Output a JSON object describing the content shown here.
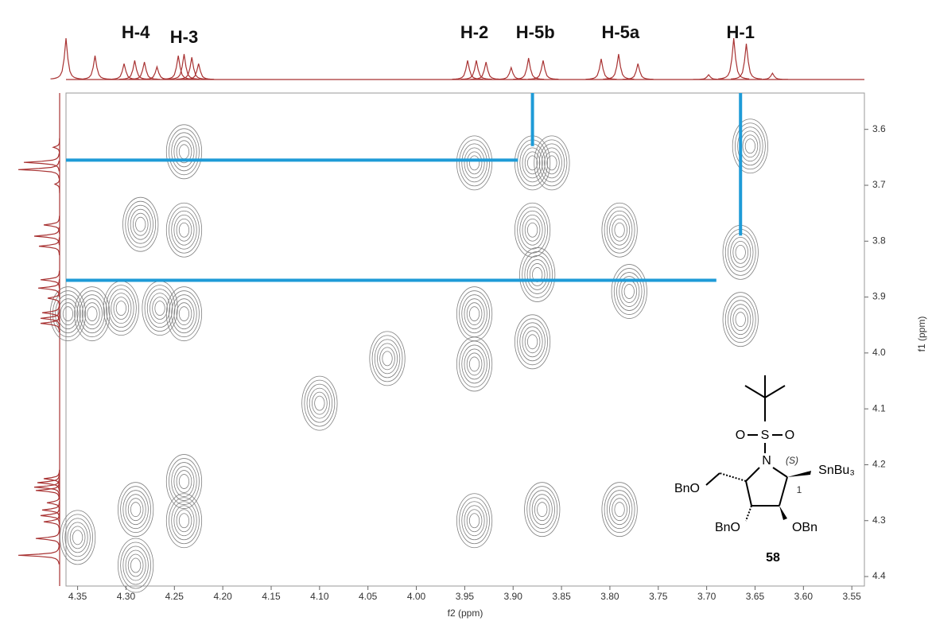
{
  "chart_data": {
    "type": "contour",
    "xlabel": "f2 (ppm)",
    "ylabel": "f1 (ppm)",
    "xlim": [
      4.362,
      3.537
    ],
    "ylim": [
      4.417,
      3.535
    ],
    "xticks": [
      4.35,
      {
        "value": 4.3,
        "label": "4.30"
      },
      4.25,
      {
        "value": 4.2,
        "label": "4.20"
      },
      4.15,
      {
        "value": 4.1,
        "label": "4.10"
      },
      4.05,
      {
        "value": 4.0,
        "label": "4.00"
      },
      3.95,
      {
        "value": 3.9,
        "label": "3.90"
      },
      3.85,
      {
        "value": 3.8,
        "label": "3.80"
      },
      3.75,
      {
        "value": 3.7,
        "label": "3.70"
      },
      3.65,
      {
        "value": 3.6,
        "label": "3.60"
      },
      3.55
    ],
    "yticks": [
      3.6,
      3.7,
      3.8,
      3.9,
      {
        "value": 4.0,
        "label": "4.0"
      },
      4.1,
      4.2,
      4.3,
      4.4
    ],
    "contour_color": "#808080",
    "peaks": [
      {
        "x": 4.35,
        "y": 4.33
      },
      {
        "x": 4.29,
        "y": 4.28
      },
      {
        "x": 4.24,
        "y": 4.23
      },
      {
        "x": 3.94,
        "y": 3.93
      },
      {
        "x": 3.875,
        "y": 3.86
      },
      {
        "x": 3.79,
        "y": 3.78
      },
      {
        "x": 3.655,
        "y": 3.63
      },
      {
        "x": 3.94,
        "y": 3.66
      },
      {
        "x": 3.88,
        "y": 3.78
      },
      {
        "x": 3.78,
        "y": 3.89
      },
      {
        "x": 3.665,
        "y": 3.94
      },
      {
        "x": 3.665,
        "y": 3.82
      },
      {
        "x": 4.285,
        "y": 3.77
      },
      {
        "x": 4.24,
        "y": 3.78
      },
      {
        "x": 4.305,
        "y": 3.92
      },
      {
        "x": 4.265,
        "y": 3.92
      },
      {
        "x": 4.24,
        "y": 3.93
      },
      {
        "x": 4.36,
        "y": 3.93
      },
      {
        "x": 4.335,
        "y": 3.93
      },
      {
        "x": 3.94,
        "y": 4.3
      },
      {
        "x": 3.87,
        "y": 4.28
      },
      {
        "x": 3.79,
        "y": 4.28
      },
      {
        "x": 4.29,
        "y": 4.38
      },
      {
        "x": 4.24,
        "y": 4.3
      },
      {
        "x": 3.88,
        "y": 3.66
      },
      {
        "x": 3.86,
        "y": 3.66
      },
      {
        "x": 4.24,
        "y": 3.64
      },
      {
        "x": 3.94,
        "y": 4.02
      },
      {
        "x": 3.88,
        "y": 3.98
      },
      {
        "x": 4.1,
        "y": 4.09
      },
      {
        "x": 4.03,
        "y": 4.01
      }
    ],
    "projection": {
      "ppm": [
        4.362,
        4.332,
        4.302,
        4.291,
        4.281,
        4.268,
        4.246,
        4.24,
        4.232,
        4.225,
        3.947,
        3.938,
        3.928,
        3.902,
        3.884,
        3.869,
        3.809,
        3.791,
        3.771,
        3.698,
        3.672,
        3.659,
        3.632
      ],
      "intensity": [
        0.52,
        0.3,
        0.2,
        0.24,
        0.22,
        0.16,
        0.3,
        0.32,
        0.28,
        0.2,
        0.24,
        0.24,
        0.22,
        0.15,
        0.27,
        0.24,
        0.26,
        0.32,
        0.2,
        0.06,
        0.52,
        0.45,
        0.08
      ],
      "color": "#a83232"
    },
    "guide_color": "#1e9bd7",
    "guides": [
      {
        "x": [
          4.362,
          3.895
        ],
        "y": [
          3.655,
          3.655
        ]
      },
      {
        "x": [
          4.362,
          3.69
        ],
        "y": [
          3.87,
          3.87
        ]
      },
      {
        "x": [
          3.88,
          3.88
        ],
        "y": [
          3.535,
          3.63
        ]
      },
      {
        "x": [
          3.665,
          3.665
        ],
        "y": [
          3.535,
          3.79
        ]
      }
    ],
    "annotations": [
      {
        "text": "H-4",
        "x": 4.29
      },
      {
        "text": "H-3",
        "x": 4.24
      },
      {
        "text": "H-2",
        "x": 3.94
      },
      {
        "text": "H-5b",
        "x": 3.877
      },
      {
        "text": "H-5a",
        "x": 3.789
      },
      {
        "text": "H-1",
        "x": 3.665
      }
    ],
    "molecule": {
      "label": "58",
      "n": "N",
      "s": "S",
      "o1": "O",
      "o2": "O",
      "bno_left": "BnO",
      "bno_bottom": "BnO",
      "obn": "OBn",
      "sn": "SnBu₃",
      "stereo": "(S)",
      "locant": "1"
    }
  }
}
